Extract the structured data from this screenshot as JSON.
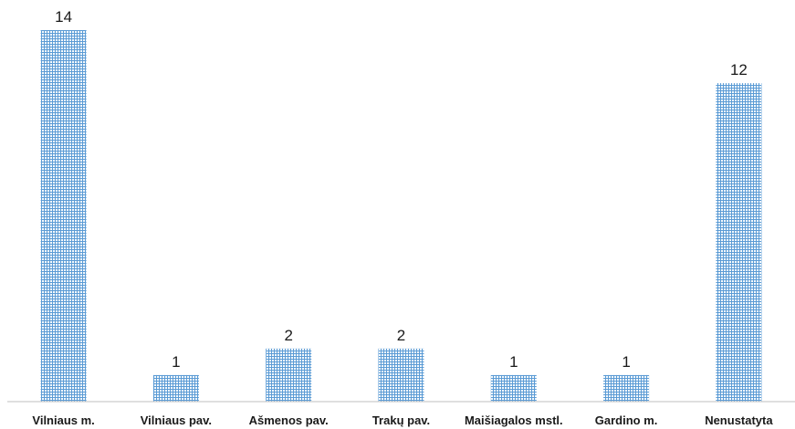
{
  "chart_data": {
    "type": "bar",
    "title": "",
    "xlabel": "",
    "ylabel": "",
    "categories": [
      "Vilniaus m.",
      "Vilniaus pav.",
      "Ašmenos pav.",
      "Trakų pav.",
      "Maišiagalos mstl.",
      "Gardino m.",
      "Nenustatyta"
    ],
    "values": [
      14,
      1,
      2,
      2,
      1,
      1,
      12
    ],
    "ylim": [
      0,
      14
    ],
    "grid": false,
    "legend": "none",
    "data_labels": true,
    "bar_fill": "blue crosshatch pattern",
    "colors": {
      "bar_line": "#5b9bd5",
      "bar_background": "#ffffff",
      "axis_line": "#bfbfbf",
      "text": "#1a1a1a"
    }
  }
}
